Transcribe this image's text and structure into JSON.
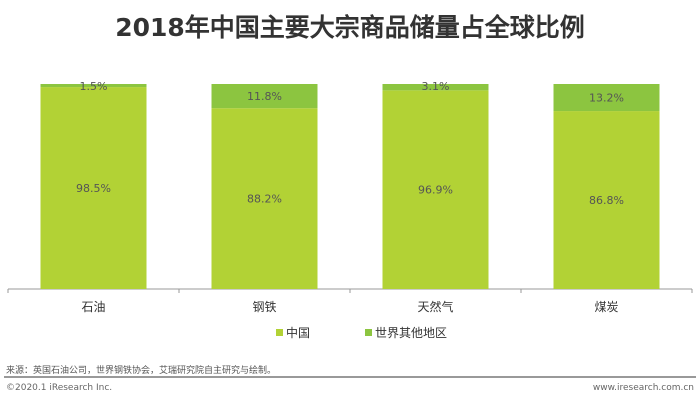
{
  "chart_data": {
    "type": "bar",
    "stacked": true,
    "title": "2018年中国主要大宗商品储量占全球比例",
    "categories": [
      "石油",
      "钢铁",
      "天然气",
      "煤炭"
    ],
    "series": [
      {
        "name": "中国",
        "values": [
          98.5,
          88.2,
          96.9,
          86.8
        ],
        "labels": [
          "98.5%",
          "88.2%",
          "96.9%",
          "86.8%"
        ],
        "color": "#b2d235"
      },
      {
        "name": "世界其他地区",
        "values": [
          1.5,
          11.8,
          3.1,
          13.2
        ],
        "labels": [
          "1.5%",
          "11.8%",
          "3.1%",
          "13.2%"
        ],
        "color": "#8cc540"
      }
    ],
    "ylim": [
      0,
      100
    ],
    "legend": "bottom-center"
  },
  "footer": {
    "source": "来源：英国石油公司，世界钢铁协会，艾瑞研究院自主研究与绘制。",
    "copyright": "©2020.1 iResearch Inc.",
    "url": "www.iresearch.com.cn"
  }
}
